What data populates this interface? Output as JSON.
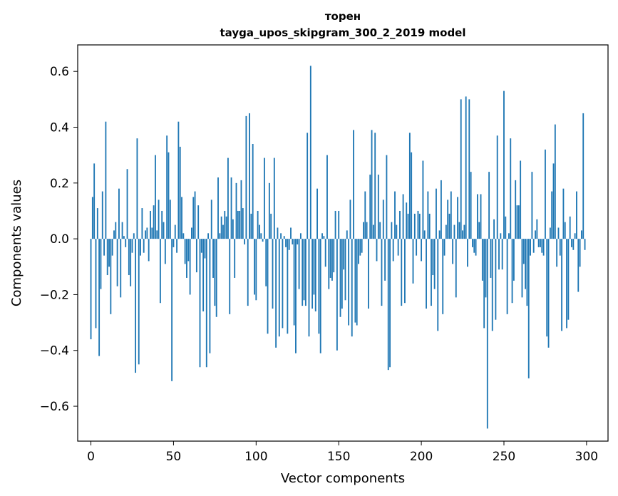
{
  "chart_data": {
    "type": "bar",
    "title": "торен",
    "subtitle": "tayga_upos_skipgram_300_2_2019 model",
    "xlabel": "Vector components",
    "ylabel": "Components values",
    "xlim": [
      -8,
      313
    ],
    "ylim": [
      -0.725,
      0.695
    ],
    "xticks": [
      0,
      50,
      100,
      150,
      200,
      250,
      300
    ],
    "yticks": [
      -0.6,
      -0.4,
      -0.2,
      0.0,
      0.2,
      0.4,
      0.6
    ],
    "xtick_labels": [
      "0",
      "50",
      "100",
      "150",
      "200",
      "250",
      "300"
    ],
    "ytick_labels": [
      "−0.6",
      "−0.4",
      "−0.2",
      "0.0",
      "0.2",
      "0.4",
      "0.6"
    ],
    "bar_color": "#1f77b4",
    "values": [
      -0.36,
      0.15,
      0.27,
      -0.32,
      0.11,
      -0.42,
      -0.18,
      0.17,
      -0.06,
      0.42,
      -0.13,
      -0.1,
      -0.27,
      -0.06,
      0.03,
      0.06,
      -0.17,
      0.18,
      -0.21,
      0.06,
      0.01,
      -0.03,
      0.25,
      -0.13,
      -0.17,
      -0.05,
      0.02,
      -0.48,
      0.36,
      -0.45,
      -0.06,
      0.11,
      -0.05,
      0.03,
      0.04,
      -0.08,
      0.1,
      0.04,
      0.12,
      0.3,
      0.03,
      0.14,
      -0.23,
      0.1,
      0.06,
      -0.09,
      0.37,
      0.31,
      0.14,
      -0.51,
      -0.03,
      0.05,
      -0.05,
      0.42,
      0.33,
      0.15,
      0.02,
      -0.09,
      -0.14,
      -0.08,
      -0.2,
      0.04,
      0.15,
      0.17,
      -0.12,
      0.12,
      -0.46,
      -0.05,
      -0.26,
      -0.07,
      -0.46,
      0.02,
      -0.41,
      0.14,
      -0.14,
      -0.24,
      -0.28,
      0.22,
      0.02,
      0.08,
      0.05,
      0.1,
      0.08,
      0.29,
      -0.27,
      0.22,
      0.07,
      -0.14,
      0.2,
      0.1,
      0.1,
      0.21,
      0.11,
      -0.02,
      0.44,
      -0.24,
      0.45,
      0.09,
      0.34,
      -0.2,
      -0.22,
      0.1,
      0.05,
      0.02,
      -0.01,
      0.29,
      -0.17,
      -0.34,
      0.2,
      0.09,
      -0.25,
      0.29,
      -0.39,
      0.04,
      -0.35,
      0.02,
      -0.32,
      0.01,
      -0.03,
      -0.34,
      -0.04,
      0.04,
      -0.02,
      -0.31,
      -0.41,
      -0.02,
      -0.18,
      0.02,
      -0.24,
      -0.22,
      -0.24,
      0.38,
      -0.35,
      0.62,
      -0.25,
      -0.2,
      -0.26,
      0.18,
      -0.34,
      -0.41,
      0.02,
      0.01,
      -0.1,
      0.3,
      -0.18,
      -0.14,
      -0.15,
      -0.12,
      0.1,
      -0.4,
      0.1,
      -0.28,
      -0.25,
      -0.11,
      -0.22,
      0.03,
      -0.31,
      0.14,
      -0.35,
      0.39,
      -0.3,
      -0.31,
      -0.09,
      -0.06,
      -0.05,
      0.06,
      0.17,
      0.06,
      -0.25,
      0.23,
      0.39,
      0.05,
      0.38,
      -0.08,
      0.23,
      0.06,
      -0.24,
      0.14,
      -0.15,
      0.3,
      -0.47,
      -0.46,
      0.06,
      -0.08,
      0.17,
      0.05,
      -0.06,
      0.1,
      -0.24,
      0.16,
      -0.23,
      0.13,
      0.09,
      0.38,
      0.31,
      -0.16,
      0.09,
      -0.06,
      0.1,
      0.09,
      -0.08,
      0.28,
      0.03,
      -0.25,
      0.17,
      0.09,
      -0.24,
      -0.13,
      -0.18,
      0.18,
      -0.33,
      0.03,
      0.21,
      -0.27,
      -0.06,
      0.05,
      0.14,
      0.09,
      0.17,
      -0.09,
      0.05,
      -0.21,
      0.15,
      0.06,
      0.5,
      0.03,
      0.05,
      0.51,
      -0.1,
      0.5,
      0.24,
      -0.03,
      -0.05,
      -0.06,
      0.16,
      0.06,
      0.16,
      -0.15,
      -0.32,
      -0.21,
      -0.68,
      0.24,
      -0.14,
      -0.33,
      0.07,
      -0.29,
      0.37,
      -0.11,
      0.02,
      -0.11,
      0.53,
      0.08,
      -0.27,
      0.02,
      0.36,
      -0.23,
      -0.15,
      0.21,
      0.12,
      0.12,
      0.28,
      -0.21,
      -0.09,
      -0.18,
      -0.24,
      -0.5,
      -0.06,
      0.24,
      -0.05,
      0.03,
      0.07,
      -0.03,
      -0.03,
      -0.05,
      -0.06,
      0.32,
      -0.35,
      -0.39,
      0.04,
      0.17,
      0.27,
      0.41,
      -0.1,
      0.04,
      -0.06,
      -0.33,
      0.18,
      0.06,
      -0.32,
      -0.29,
      0.08,
      -0.03,
      -0.04,
      0.02,
      0.17,
      -0.19,
      -0.1,
      0.03,
      0.45,
      -0.04
    ]
  }
}
